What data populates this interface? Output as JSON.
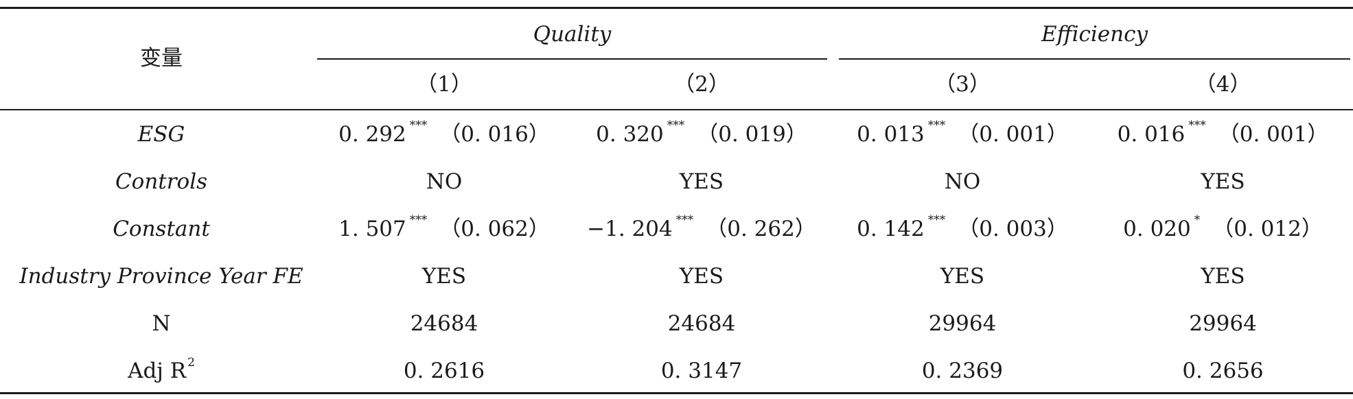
{
  "header": {
    "variable_label": "变量",
    "group_quality": "Quality",
    "group_efficiency": "Efficiency",
    "columns": [
      "（1）",
      "（2）",
      "（3）",
      "（4）"
    ]
  },
  "rows": [
    {
      "label": "ESG",
      "cells": [
        {
          "coef": "0. 292",
          "stars": "***",
          "se": "（0. 016）"
        },
        {
          "coef": "0. 320",
          "stars": "***",
          "se": "（0. 019）"
        },
        {
          "coef": "0. 013",
          "stars": "***",
          "se": "（0. 001）"
        },
        {
          "coef": "0. 016",
          "stars": "***",
          "se": "（0. 001）"
        }
      ]
    },
    {
      "label": "Controls",
      "cells": [
        {
          "value": "NO"
        },
        {
          "value": "YES"
        },
        {
          "value": "NO"
        },
        {
          "value": "YES"
        }
      ]
    },
    {
      "label": "Constant",
      "cells": [
        {
          "coef": "1. 507",
          "stars": "***",
          "se": "（0. 062）"
        },
        {
          "coef": "−1. 204",
          "stars": "***",
          "se": "（0. 262）"
        },
        {
          "coef": "0. 142",
          "stars": "***",
          "se": "（0. 003）"
        },
        {
          "coef": "0. 020",
          "stars": "*",
          "se": "（0. 012）"
        }
      ]
    },
    {
      "label": "Industry Province Year FE",
      "cells": [
        {
          "value": "YES"
        },
        {
          "value": "YES"
        },
        {
          "value": "YES"
        },
        {
          "value": "YES"
        }
      ]
    },
    {
      "label": "N",
      "cells": [
        {
          "value": "24684"
        },
        {
          "value": "24684"
        },
        {
          "value": "29964"
        },
        {
          "value": "29964"
        }
      ]
    },
    {
      "label": "Adj R",
      "label_sup": "2",
      "cells": [
        {
          "value": "0. 2616"
        },
        {
          "value": "0. 3147"
        },
        {
          "value": "0. 2369"
        },
        {
          "value": "0. 2656"
        }
      ]
    }
  ]
}
